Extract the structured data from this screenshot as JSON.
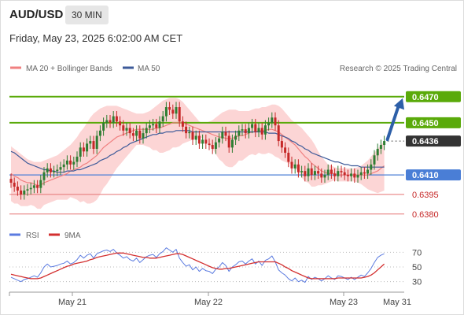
{
  "header": {
    "symbol": "AUD/USD",
    "timeframe": "30 MIN"
  },
  "date_line": "Friday, May 23, 2025 6:02:00 AM CET",
  "copyright": "Research © 2025 Trading Central",
  "colors": {
    "bull": "#2e7d32",
    "bear": "#c62828",
    "ma20": "#f08080",
    "band": "#fbc7c7",
    "ma50": "#3d5a99",
    "resistance": "#5aaa0a",
    "pivot": "#4a7ed6",
    "support": "#e57373",
    "arrow": "#2d5fa8",
    "rsi": "#5b7be0",
    "rsi_ma": "#d32f2f"
  },
  "chart_data": [
    {
      "type": "candlestick",
      "title": "AUD/USD",
      "timeframe": "30 MIN",
      "ylim": [
        0.6372,
        0.6488
      ],
      "x_tick_labels": [
        "May 21",
        "May 22",
        "May 23",
        "May 31"
      ],
      "legend": [
        {
          "name": "MA 20 + Bollinger Bands",
          "color": "#f08080"
        },
        {
          "name": "MA 50",
          "color": "#3d5a99"
        }
      ],
      "levels": [
        {
          "label": "0.6470",
          "value": 0.647,
          "kind": "resistance"
        },
        {
          "label": "0.6450",
          "value": 0.645,
          "kind": "resistance"
        },
        {
          "label": "0.6436",
          "value": 0.6436,
          "kind": "current"
        },
        {
          "label": "0.6410",
          "value": 0.641,
          "kind": "pivot"
        },
        {
          "label": "0.6395",
          "value": 0.6395,
          "kind": "support"
        },
        {
          "label": "0.6380",
          "value": 0.638,
          "kind": "support"
        }
      ],
      "close": [
        0.6404,
        0.6401,
        0.6398,
        0.6395,
        0.6398,
        0.6399,
        0.64,
        0.6402,
        0.64,
        0.6406,
        0.6412,
        0.6415,
        0.6412,
        0.6413,
        0.6414,
        0.6416,
        0.6418,
        0.6421,
        0.6418,
        0.642,
        0.6424,
        0.6431,
        0.6428,
        0.6434,
        0.6436,
        0.643,
        0.644,
        0.6444,
        0.645,
        0.6452,
        0.645,
        0.6455,
        0.6451,
        0.6448,
        0.6444,
        0.6446,
        0.6442,
        0.644,
        0.6444,
        0.6438,
        0.6442,
        0.6446,
        0.6448,
        0.6449,
        0.6446,
        0.6451,
        0.6455,
        0.6462,
        0.646,
        0.6457,
        0.6462,
        0.6451,
        0.6447,
        0.6442,
        0.6443,
        0.6437,
        0.644,
        0.6434,
        0.6437,
        0.6434,
        0.6433,
        0.643,
        0.6435,
        0.6438,
        0.6443,
        0.644,
        0.6431,
        0.6437,
        0.644,
        0.6444,
        0.6445,
        0.6442,
        0.6446,
        0.6449,
        0.6443,
        0.6446,
        0.6441,
        0.6448,
        0.645,
        0.6454,
        0.6448,
        0.6436,
        0.6431,
        0.6427,
        0.642,
        0.6415,
        0.6418,
        0.6412,
        0.6413,
        0.6409,
        0.6415,
        0.641,
        0.6413,
        0.6411,
        0.6408,
        0.641,
        0.6414,
        0.6411,
        0.6409,
        0.6413,
        0.6412,
        0.641,
        0.6409,
        0.6411,
        0.6408,
        0.641,
        0.6412,
        0.6411,
        0.6414,
        0.6418,
        0.6425,
        0.643,
        0.6433,
        0.6436
      ],
      "ma20": [
        0.6411,
        0.6409,
        0.6408,
        0.6406,
        0.6405,
        0.6404,
        0.6404,
        0.6403,
        0.6402,
        0.6402,
        0.6404,
        0.6405,
        0.6406,
        0.6407,
        0.6408,
        0.6409,
        0.641,
        0.6411,
        0.6413,
        0.6414,
        0.6415,
        0.6416,
        0.6418,
        0.6419,
        0.6421,
        0.6423,
        0.6425,
        0.6428,
        0.6431,
        0.6433,
        0.6435,
        0.6437,
        0.6439,
        0.644,
        0.6441,
        0.6442,
        0.6443,
        0.6444,
        0.6445,
        0.6445,
        0.6445,
        0.6445,
        0.6445,
        0.6445,
        0.6446,
        0.6446,
        0.6447,
        0.6448,
        0.6449,
        0.645,
        0.645,
        0.645,
        0.645,
        0.6449,
        0.6448,
        0.6447,
        0.6446,
        0.6445,
        0.6444,
        0.6443,
        0.6442,
        0.6441,
        0.644,
        0.6439,
        0.6439,
        0.6438,
        0.6438,
        0.6438,
        0.6439,
        0.644,
        0.644,
        0.6441,
        0.6442,
        0.6443,
        0.6443,
        0.6444,
        0.6444,
        0.6444,
        0.6445,
        0.6445,
        0.6444,
        0.6443,
        0.6441,
        0.6439,
        0.6437,
        0.6435,
        0.6433,
        0.643,
        0.6427,
        0.6424,
        0.6422,
        0.6419,
        0.6417,
        0.6415,
        0.6413,
        0.6412,
        0.6411,
        0.6411,
        0.6411,
        0.641,
        0.641,
        0.641,
        0.641,
        0.641,
        0.641,
        0.641,
        0.641,
        0.641,
        0.641,
        0.6411,
        0.6412,
        0.6413,
        0.6415,
        0.6417
      ],
      "bollinger_upper": [
        0.6432,
        0.643,
        0.6428,
        0.6426,
        0.6424,
        0.6422,
        0.6421,
        0.642,
        0.642,
        0.642,
        0.6421,
        0.6422,
        0.6423,
        0.6424,
        0.6425,
        0.6427,
        0.6429,
        0.6431,
        0.6433,
        0.6436,
        0.6439,
        0.6443,
        0.6446,
        0.645,
        0.6454,
        0.6457,
        0.6459,
        0.6461,
        0.6462,
        0.6463,
        0.6463,
        0.6463,
        0.6463,
        0.6462,
        0.6461,
        0.646,
        0.6459,
        0.6458,
        0.6457,
        0.6457,
        0.6457,
        0.6458,
        0.6459,
        0.6461,
        0.6463,
        0.6465,
        0.6467,
        0.6468,
        0.6469,
        0.6469,
        0.6469,
        0.6468,
        0.6466,
        0.6463,
        0.646,
        0.6457,
        0.6454,
        0.6451,
        0.645,
        0.645,
        0.6451,
        0.6452,
        0.6454,
        0.6456,
        0.6458,
        0.6459,
        0.646,
        0.646,
        0.646,
        0.6459,
        0.6459,
        0.6459,
        0.6459,
        0.646,
        0.6461,
        0.6461,
        0.6462,
        0.6462,
        0.6463,
        0.6464,
        0.6464,
        0.6463,
        0.6461,
        0.6458,
        0.6455,
        0.6452,
        0.645,
        0.6448,
        0.6446,
        0.6443,
        0.644,
        0.6437,
        0.6433,
        0.6428,
        0.6424,
        0.6421,
        0.6418,
        0.6417,
        0.6416,
        0.6415,
        0.6415,
        0.6415,
        0.6415,
        0.6415,
        0.6415,
        0.6416,
        0.6417,
        0.6419,
        0.6421,
        0.6424,
        0.6427,
        0.643,
        0.6433,
        0.6436
      ],
      "bollinger_lower": [
        0.639,
        0.6388,
        0.6388,
        0.6386,
        0.6386,
        0.6386,
        0.6387,
        0.6386,
        0.6384,
        0.6384,
        0.6387,
        0.6388,
        0.6389,
        0.639,
        0.6391,
        0.6391,
        0.6391,
        0.6391,
        0.6393,
        0.6392,
        0.6391,
        0.6389,
        0.639,
        0.6388,
        0.6388,
        0.6389,
        0.6391,
        0.6395,
        0.64,
        0.6403,
        0.6407,
        0.6411,
        0.6415,
        0.6418,
        0.6421,
        0.6424,
        0.6427,
        0.643,
        0.6433,
        0.6433,
        0.6433,
        0.6432,
        0.6431,
        0.6429,
        0.6429,
        0.6427,
        0.6427,
        0.6428,
        0.6429,
        0.6431,
        0.6431,
        0.6432,
        0.6434,
        0.6435,
        0.6436,
        0.6437,
        0.6438,
        0.6439,
        0.6438,
        0.6436,
        0.6433,
        0.643,
        0.6426,
        0.6422,
        0.642,
        0.6417,
        0.6416,
        0.6416,
        0.6418,
        0.6421,
        0.6421,
        0.6423,
        0.6425,
        0.6426,
        0.6425,
        0.6427,
        0.6426,
        0.6426,
        0.6427,
        0.6426,
        0.6424,
        0.6423,
        0.6421,
        0.642,
        0.6419,
        0.6418,
        0.6416,
        0.6412,
        0.6408,
        0.6405,
        0.6404,
        0.6401,
        0.6401,
        0.6402,
        0.6402,
        0.6403,
        0.6404,
        0.6405,
        0.6406,
        0.6405,
        0.6405,
        0.6405,
        0.6405,
        0.6405,
        0.6405,
        0.6404,
        0.6403,
        0.6401,
        0.6399,
        0.6398,
        0.6397,
        0.6396,
        0.6397,
        0.6398
      ],
      "ma50": [
        0.6428,
        0.6427,
        0.6425,
        0.6423,
        0.6421,
        0.6419,
        0.6418,
        0.6417,
        0.6416,
        0.6415,
        0.6414,
        0.6414,
        0.6413,
        0.6413,
        0.6412,
        0.6412,
        0.6412,
        0.6413,
        0.6413,
        0.6413,
        0.6414,
        0.6414,
        0.6415,
        0.6416,
        0.6417,
        0.6418,
        0.6419,
        0.6421,
        0.6422,
        0.6423,
        0.6425,
        0.6426,
        0.6428,
        0.6429,
        0.6431,
        0.6432,
        0.6434,
        0.6435,
        0.6436,
        0.6437,
        0.6438,
        0.6439,
        0.644,
        0.6441,
        0.6441,
        0.6442,
        0.6442,
        0.6443,
        0.6443,
        0.6443,
        0.6444,
        0.6444,
        0.6444,
        0.6444,
        0.6444,
        0.6443,
        0.6443,
        0.6443,
        0.6443,
        0.6443,
        0.6443,
        0.6443,
        0.6443,
        0.6443,
        0.6443,
        0.6443,
        0.6443,
        0.6443,
        0.6443,
        0.6443,
        0.6443,
        0.6443,
        0.6443,
        0.6443,
        0.6443,
        0.6443,
        0.6443,
        0.6443,
        0.6442,
        0.6442,
        0.6442,
        0.6441,
        0.644,
        0.6439,
        0.6438,
        0.6436,
        0.6435,
        0.6433,
        0.6432,
        0.643,
        0.6429,
        0.6427,
        0.6426,
        0.6425,
        0.6424,
        0.6423,
        0.6422,
        0.6421,
        0.642,
        0.642,
        0.6419,
        0.6418,
        0.6418,
        0.6417,
        0.6417,
        0.6417,
        0.6416,
        0.6416,
        0.6416,
        0.6416,
        0.6416,
        0.6416,
        0.6416,
        0.6416
      ],
      "forecast_arrow": {
        "from": 0.6436,
        "to": 0.647
      }
    },
    {
      "type": "line",
      "title": "RSI",
      "ylim": [
        20,
        80
      ],
      "y_tick_labels": [
        "70",
        "50",
        "30"
      ],
      "legend": [
        {
          "name": "RSI",
          "color": "#5b7be0"
        },
        {
          "name": "9MA",
          "color": "#d32f2f"
        }
      ],
      "series": [
        {
          "name": "RSI",
          "values": [
            36,
            34,
            32,
            30,
            33,
            34,
            36,
            38,
            36,
            42,
            50,
            54,
            50,
            51,
            52,
            54,
            55,
            58,
            54,
            56,
            60,
            66,
            62,
            66,
            68,
            62,
            68,
            70,
            72,
            73,
            71,
            74,
            69,
            66,
            62,
            64,
            60,
            58,
            62,
            56,
            60,
            64,
            66,
            67,
            63,
            68,
            71,
            76,
            73,
            70,
            74,
            62,
            56,
            51,
            53,
            46,
            50,
            44,
            48,
            45,
            44,
            41,
            47,
            50,
            56,
            52,
            44,
            50,
            53,
            57,
            58,
            54,
            58,
            61,
            54,
            58,
            52,
            59,
            61,
            65,
            57,
            46,
            42,
            39,
            34,
            31,
            35,
            30,
            32,
            29,
            37,
            33,
            36,
            34,
            31,
            34,
            38,
            35,
            33,
            38,
            37,
            35,
            33,
            36,
            33,
            36,
            39,
            37,
            42,
            48,
            56,
            63,
            66,
            68
          ]
        },
        {
          "name": "9MA",
          "values": [
            40,
            39,
            38,
            37,
            36,
            35,
            34,
            34,
            34,
            35,
            37,
            39,
            41,
            43,
            45,
            47,
            49,
            51,
            52,
            54,
            55,
            56,
            57,
            58,
            60,
            61,
            63,
            64,
            65,
            66,
            67,
            68,
            69,
            69,
            69,
            68,
            67,
            66,
            65,
            64,
            63,
            63,
            62,
            62,
            62,
            63,
            64,
            65,
            66,
            67,
            68,
            68,
            67,
            65,
            63,
            61,
            59,
            57,
            55,
            53,
            51,
            49,
            48,
            47,
            47,
            48,
            48,
            49,
            50,
            51,
            52,
            53,
            54,
            55,
            56,
            57,
            57,
            57,
            57,
            57,
            57,
            55,
            53,
            50,
            48,
            45,
            43,
            41,
            39,
            37,
            35,
            34,
            34,
            34,
            34,
            34,
            34,
            34,
            34,
            35,
            35,
            35,
            35,
            35,
            35,
            35,
            35,
            36,
            37,
            39,
            42,
            46,
            50,
            54
          ]
        }
      ]
    }
  ]
}
